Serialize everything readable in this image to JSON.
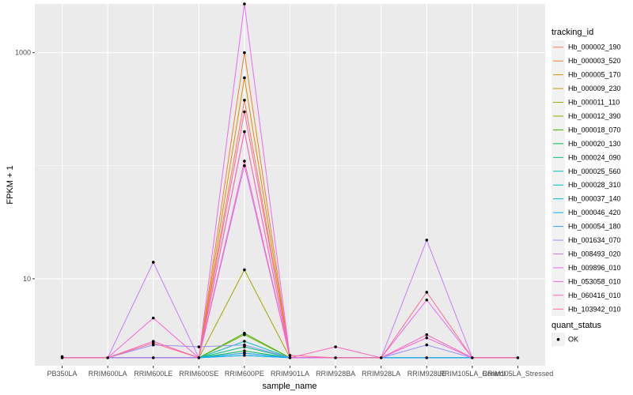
{
  "chart_data": {
    "type": "line",
    "xlabel": "sample_name",
    "ylabel": "FPKM + 1",
    "y_scale": "log10",
    "y_ticks": [
      10,
      1000
    ],
    "ylim": [
      1.7,
      2700
    ],
    "grid": true,
    "legend_placement": "right",
    "categories": [
      "PB350LA",
      "RRIM600LA",
      "RRIM600LE",
      "RRIM600SE",
      "RRIM600PE",
      "RRIM901LA",
      "RRIM928BA",
      "RRIM928LA",
      "RRIM928LE",
      "RRIM105LA_Control",
      "RRIM105LA_Stressed"
    ],
    "legend_title": "tracking_id",
    "series": [
      {
        "name": "Hb_000002_190",
        "color": "#F8766D",
        "values": [
          2,
          2,
          2,
          2,
          380,
          2,
          2,
          2,
          2,
          2,
          2
        ]
      },
      {
        "name": "Hb_000003_520",
        "color": "#EA8331",
        "values": [
          2,
          2,
          2,
          2,
          1000,
          2,
          2,
          2,
          2,
          2,
          2
        ]
      },
      {
        "name": "Hb_000005_170",
        "color": "#D89000",
        "values": [
          2,
          2,
          2,
          2,
          600,
          2,
          2,
          2,
          2,
          2,
          2
        ]
      },
      {
        "name": "Hb_000009_230",
        "color": "#C09B00",
        "values": [
          2,
          2,
          2,
          2,
          200,
          2,
          2,
          2,
          2,
          2,
          2
        ]
      },
      {
        "name": "Hb_000011_110",
        "color": "#A3A500",
        "values": [
          2,
          2,
          2,
          2,
          12,
          2,
          2,
          2,
          2,
          2,
          2
        ]
      },
      {
        "name": "Hb_000012_390",
        "color": "#7CAE00",
        "values": [
          2,
          2,
          2,
          2,
          3.2,
          2,
          2,
          2,
          2,
          2,
          2
        ]
      },
      {
        "name": "Hb_000018_070",
        "color": "#39B600",
        "values": [
          2,
          2,
          2,
          2,
          3.3,
          2,
          2,
          2,
          2,
          2,
          2
        ]
      },
      {
        "name": "Hb_000020_130",
        "color": "#00BB4E",
        "values": [
          2,
          2,
          2,
          2,
          2.3,
          2,
          2,
          2,
          2,
          2,
          2
        ]
      },
      {
        "name": "Hb_000024_090",
        "color": "#00BF7D",
        "values": [
          2,
          2,
          2,
          2,
          2.5,
          2,
          2,
          2,
          2,
          2,
          2
        ]
      },
      {
        "name": "Hb_000025_560",
        "color": "#00C1A3",
        "values": [
          2,
          2,
          2,
          2,
          2.2,
          2,
          2,
          2,
          2,
          2,
          2
        ]
      },
      {
        "name": "Hb_000028_310",
        "color": "#00BFC4",
        "values": [
          2,
          2,
          2,
          2,
          2.8,
          2,
          2,
          2,
          2,
          2,
          2
        ]
      },
      {
        "name": "Hb_000037_140",
        "color": "#00BAE0",
        "values": [
          2,
          2,
          2,
          2,
          2.1,
          2,
          2,
          2,
          2,
          2,
          2
        ]
      },
      {
        "name": "Hb_000046_420",
        "color": "#00B0F6",
        "values": [
          2,
          2,
          2,
          2,
          2.1,
          2,
          2,
          2,
          2,
          2,
          2
        ]
      },
      {
        "name": "Hb_000054_180",
        "color": "#35A2FF",
        "values": [
          2,
          2,
          2,
          2,
          2.2,
          2,
          2,
          2,
          2,
          2,
          2
        ]
      },
      {
        "name": "Hb_001634_070",
        "color": "#9590FF",
        "values": [
          2,
          2,
          2.6,
          2.5,
          2.6,
          2,
          2,
          2,
          2.6,
          2,
          2
        ]
      },
      {
        "name": "Hb_008493_020",
        "color": "#C77CFF",
        "values": [
          2,
          2,
          14,
          2,
          100,
          2,
          2,
          2,
          22,
          2,
          2
        ]
      },
      {
        "name": "Hb_009896_010",
        "color": "#E76BF3",
        "values": [
          2,
          2,
          2,
          2,
          2700,
          2,
          2,
          2,
          6.5,
          2,
          2
        ]
      },
      {
        "name": "Hb_053058_010",
        "color": "#FA62DB",
        "values": [
          2,
          2,
          4.5,
          2,
          200,
          2,
          2,
          2,
          3,
          2,
          2
        ]
      },
      {
        "name": "Hb_060416_010",
        "color": "#FF62BC",
        "values": [
          2,
          2,
          2.8,
          2,
          110,
          2,
          2.5,
          2,
          3.2,
          2,
          2
        ]
      },
      {
        "name": "Hb_103942_010",
        "color": "#FF6C91",
        "values": [
          2,
          2,
          2.7,
          2,
          300,
          2.1,
          2,
          2,
          7.6,
          2,
          2
        ]
      }
    ],
    "points": [
      {
        "x": "PB350LA",
        "y": 2.05
      },
      {
        "x": "PB350LA",
        "y": 2.0
      },
      {
        "x": "RRIM600LA",
        "y": 2.0
      },
      {
        "x": "RRIM600LE",
        "y": 14
      },
      {
        "x": "RRIM600LE",
        "y": 4.5
      },
      {
        "x": "RRIM600LE",
        "y": 2.8
      },
      {
        "x": "RRIM600LE",
        "y": 2.7
      },
      {
        "x": "RRIM600LE",
        "y": 2.6
      },
      {
        "x": "RRIM600LE",
        "y": 2.0
      },
      {
        "x": "RRIM600SE",
        "y": 2.5
      },
      {
        "x": "RRIM600SE",
        "y": 2.0
      },
      {
        "x": "RRIM600PE",
        "y": 2700
      },
      {
        "x": "RRIM600PE",
        "y": 1000
      },
      {
        "x": "RRIM600PE",
        "y": 600
      },
      {
        "x": "RRIM600PE",
        "y": 380
      },
      {
        "x": "RRIM600PE",
        "y": 300
      },
      {
        "x": "RRIM600PE",
        "y": 200
      },
      {
        "x": "RRIM600PE",
        "y": 110
      },
      {
        "x": "RRIM600PE",
        "y": 100
      },
      {
        "x": "RRIM600PE",
        "y": 12
      },
      {
        "x": "RRIM600PE",
        "y": 3.3
      },
      {
        "x": "RRIM600PE",
        "y": 3.2
      },
      {
        "x": "RRIM600PE",
        "y": 2.8
      },
      {
        "x": "RRIM600PE",
        "y": 2.6
      },
      {
        "x": "RRIM600PE",
        "y": 2.5
      },
      {
        "x": "RRIM600PE",
        "y": 2.3
      },
      {
        "x": "RRIM600PE",
        "y": 2.2
      },
      {
        "x": "RRIM600PE",
        "y": 2.1
      },
      {
        "x": "RRIM901LA",
        "y": 2.1
      },
      {
        "x": "RRIM901LA",
        "y": 2.0
      },
      {
        "x": "RRIM928BA",
        "y": 2.5
      },
      {
        "x": "RRIM928BA",
        "y": 2.0
      },
      {
        "x": "RRIM928LA",
        "y": 2.0
      },
      {
        "x": "RRIM928LE",
        "y": 22
      },
      {
        "x": "RRIM928LE",
        "y": 7.6
      },
      {
        "x": "RRIM928LE",
        "y": 6.5
      },
      {
        "x": "RRIM928LE",
        "y": 3.2
      },
      {
        "x": "RRIM928LE",
        "y": 3.0
      },
      {
        "x": "RRIM928LE",
        "y": 2.6
      },
      {
        "x": "RRIM928LE",
        "y": 2.0
      },
      {
        "x": "RRIM105LA_Control",
        "y": 2.0
      },
      {
        "x": "RRIM105LA_Stressed",
        "y": 2.0
      }
    ],
    "shape_legend_title": "quant_status",
    "shape_legend_items": [
      "OK"
    ]
  }
}
